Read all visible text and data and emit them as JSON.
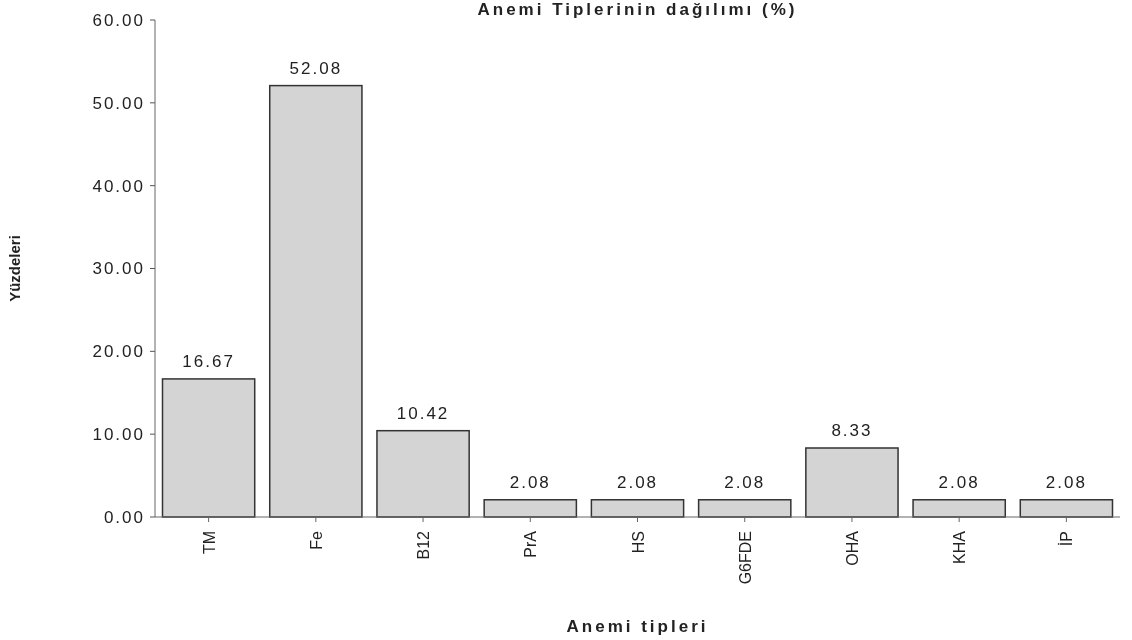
{
  "chart_data": {
    "type": "bar",
    "title": "Anemi Tiplerinin dağılımı (%)",
    "xlabel": "Anemi tipleri",
    "ylabel": "Yüzdeleri",
    "categories": [
      "TM",
      "Fe",
      "B12",
      "PrA",
      "HS",
      "G6FDE",
      "OHA",
      "KHA",
      "İP"
    ],
    "values": [
      16.67,
      52.08,
      10.42,
      2.08,
      2.08,
      2.08,
      8.33,
      2.08,
      2.08
    ],
    "color": "#d4d4d4",
    "data_labels": true,
    "ylim": [
      0,
      60
    ],
    "yticks": [
      {
        "value": 0,
        "label": "0.00"
      },
      {
        "value": 10,
        "label": "10.00"
      },
      {
        "value": 20,
        "label": "20.00"
      },
      {
        "value": 30,
        "label": "30.00"
      },
      {
        "value": 40,
        "label": "40.00"
      },
      {
        "value": 50,
        "label": "50.00"
      },
      {
        "value": 60,
        "label": "60.00"
      }
    ],
    "grid": false
  }
}
